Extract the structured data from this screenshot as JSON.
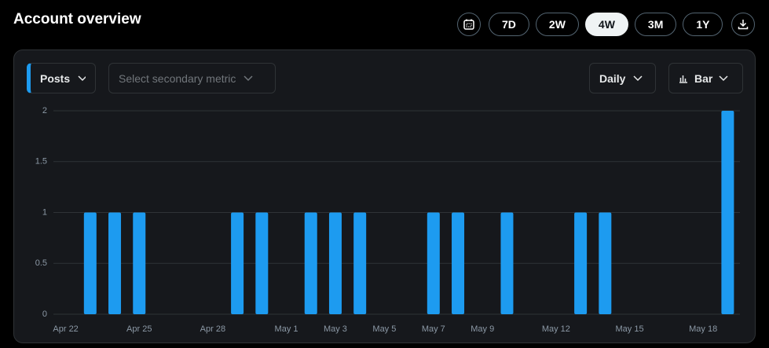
{
  "header": {
    "title": "Account overview",
    "ranges": [
      "7D",
      "2W",
      "4W",
      "3M",
      "1Y"
    ]
  },
  "panel": {
    "metric": "Posts",
    "secondary_metric": "Select secondary metric",
    "interval": "Daily",
    "chart_kind": "Bar"
  },
  "chart_data": {
    "type": "bar",
    "categories": [
      "Apr 22",
      null,
      null,
      "Apr 25",
      null,
      null,
      "Apr 28",
      null,
      null,
      "May 1",
      null,
      "May 3",
      null,
      "May 5",
      null,
      "May 7",
      null,
      "May 9",
      null,
      null,
      "May 12",
      null,
      null,
      "May 15",
      null,
      null,
      "May 18",
      null
    ],
    "values": [
      0,
      1,
      1,
      1,
      0,
      0,
      0,
      1,
      1,
      0,
      1,
      1,
      1,
      0,
      0,
      1,
      1,
      0,
      1,
      0,
      0,
      1,
      1,
      0,
      0,
      0,
      0,
      2
    ],
    "color": "#1d9bf0",
    "ylim": [
      0,
      2
    ],
    "yticks": [
      0,
      0.5,
      1,
      1.5,
      2
    ],
    "grid": true
  }
}
